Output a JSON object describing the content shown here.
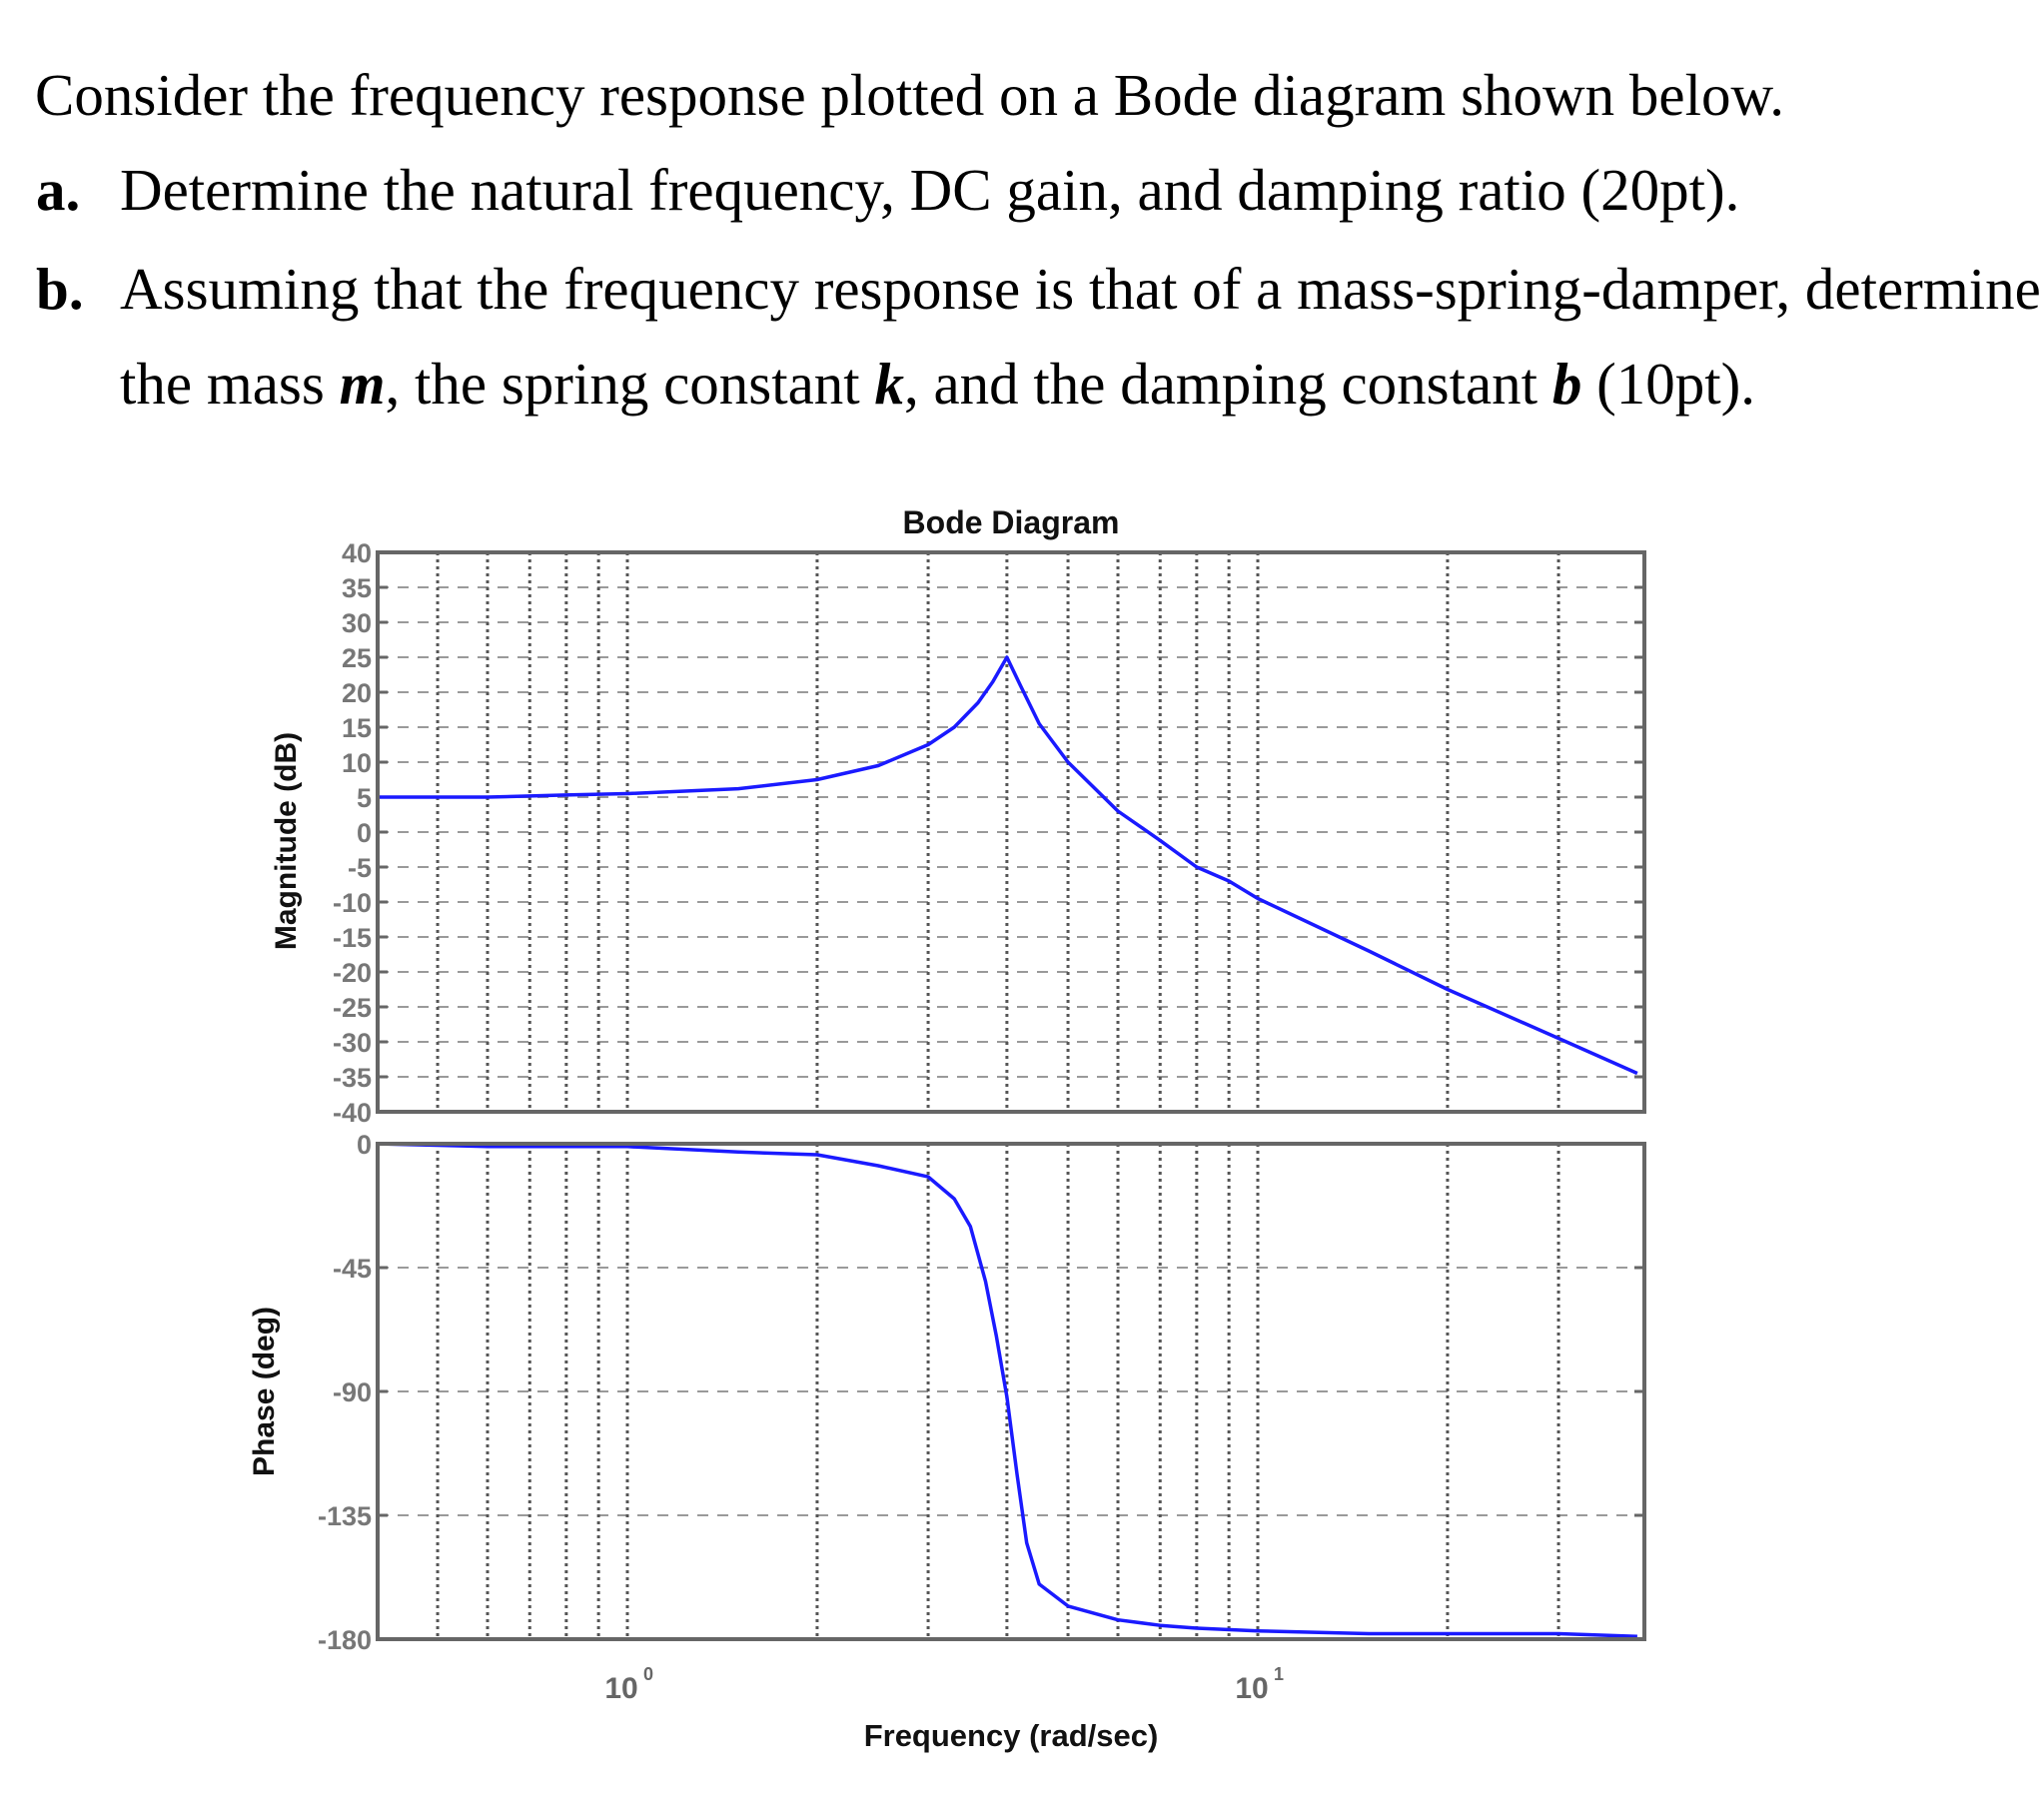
{
  "question": {
    "intro": "Consider the frequency response plotted on a Bode diagram shown below.",
    "parts": [
      {
        "label": "a.",
        "text": "Determine the natural frequency, DC gain, and damping ratio (20pt)."
      },
      {
        "label": "b.",
        "line1": "Assuming that the frequency response is that of a mass-spring-damper, determine",
        "line2_segments": [
          {
            "text": "the mass ",
            "style": "normal"
          },
          {
            "text": "m",
            "style": "bold-italic"
          },
          {
            "text": ", the spring constant ",
            "style": "normal"
          },
          {
            "text": "k",
            "style": "bold-italic"
          },
          {
            "text": ", and the damping constant ",
            "style": "normal"
          },
          {
            "text": "b",
            "style": "bold-italic"
          },
          {
            "text": " (10pt).",
            "style": "normal"
          }
        ]
      }
    ]
  },
  "chart_data": {
    "type": "line",
    "title": "Bode Diagram",
    "xlabel": "Frequency (rad/sec)",
    "xscale": "log",
    "xlim": [
      0.4,
      40
    ],
    "x_tick_labels": [
      {
        "base": "10",
        "exp": "0",
        "value": 1
      },
      {
        "base": "10",
        "exp": "1",
        "value": 10
      }
    ],
    "x_minor_gridlines": [
      0.5,
      0.6,
      0.7,
      0.8,
      0.9,
      1,
      2,
      3,
      4,
      5,
      6,
      7,
      8,
      9,
      10,
      20,
      30
    ],
    "grid": true,
    "line_color": "#1a1aff",
    "subplots": [
      {
        "name": "magnitude",
        "ylabel": "Magnitude (dB)",
        "ylim": [
          -40,
          40
        ],
        "yticks": [
          40,
          35,
          30,
          25,
          20,
          15,
          10,
          5,
          0,
          -5,
          -10,
          -15,
          -20,
          -25,
          -30,
          -35,
          -40
        ],
        "series": [
          {
            "name": "Magnitude",
            "x": [
              0.4,
              0.6,
              0.8,
              1.0,
              1.5,
              2.0,
              2.5,
              3.0,
              3.3,
              3.6,
              3.8,
              4.0,
              4.2,
              4.5,
              5.0,
              6.0,
              7.0,
              8.0,
              9.0,
              10.0,
              15.0,
              20.0,
              30.0,
              40.0
            ],
            "y": [
              5.0,
              5.0,
              5.3,
              5.5,
              6.2,
              7.5,
              9.5,
              12.5,
              15.0,
              18.5,
              21.5,
              25.0,
              21.0,
              15.5,
              10.0,
              3.0,
              -1.2,
              -5.0,
              -7.0,
              -9.5,
              -17.0,
              -22.5,
              -29.5,
              -34.5
            ]
          }
        ]
      },
      {
        "name": "phase",
        "ylabel": "Phase (deg)",
        "ylim": [
          -180,
          0
        ],
        "yticks": [
          0,
          -45,
          -90,
          -135,
          -180
        ],
        "series": [
          {
            "name": "Phase",
            "x": [
              0.4,
              0.6,
              0.8,
              1.0,
              1.5,
              2.0,
              2.5,
              3.0,
              3.3,
              3.5,
              3.7,
              3.85,
              4.0,
              4.15,
              4.3,
              4.5,
              5.0,
              6.0,
              7.0,
              8.0,
              10.0,
              15.0,
              20.0,
              30.0,
              40.0
            ],
            "y": [
              0,
              -1,
              -1,
              -1,
              -3,
              -4,
              -8,
              -12,
              -20,
              -30,
              -50,
              -70,
              -92,
              -120,
              -145,
              -160,
              -168,
              -173,
              -175,
              -176,
              -177,
              -178,
              -178,
              -178,
              -179
            ]
          }
        ]
      }
    ]
  }
}
